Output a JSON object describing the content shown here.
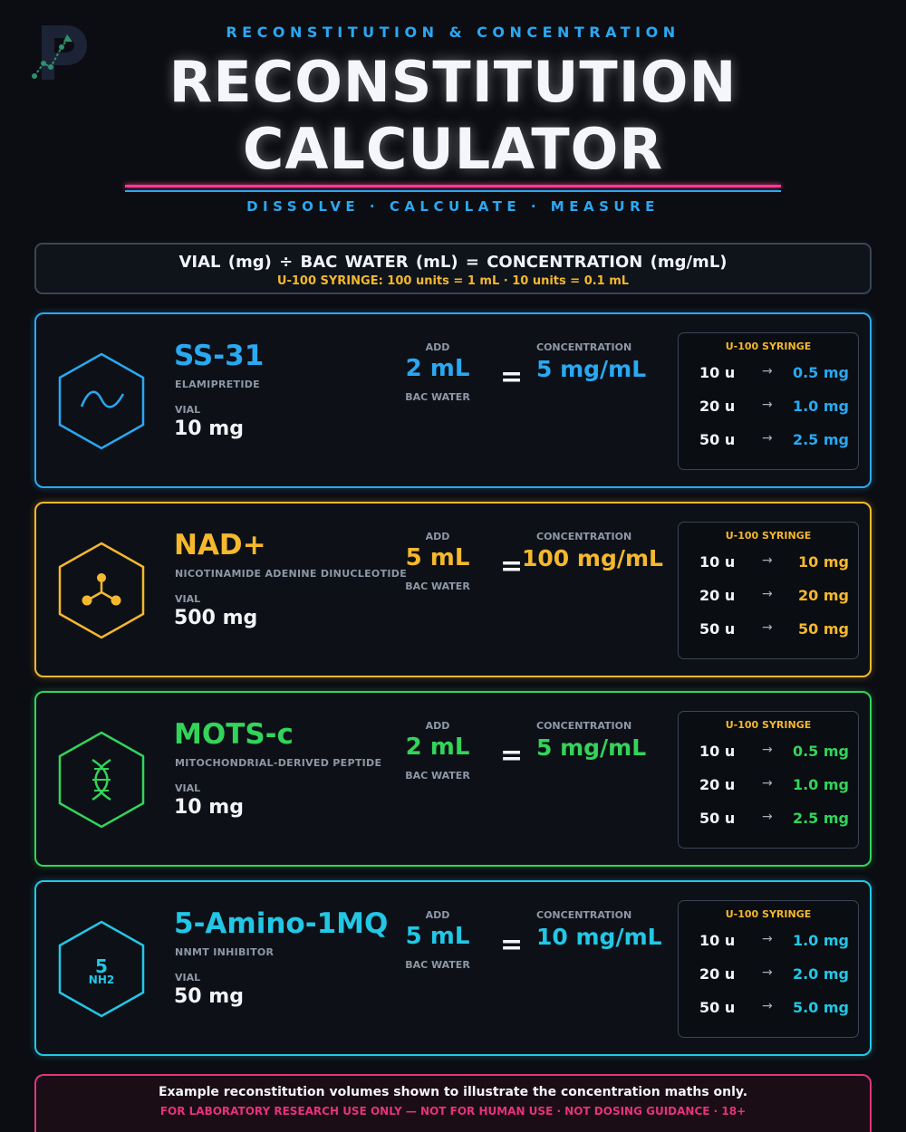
{
  "colors": {
    "blue": "#2aa8f2",
    "yellow": "#f5b82e",
    "green": "#33d45a",
    "cyan": "#22c7e6",
    "pink": "#ff3c8e"
  },
  "header": {
    "kicker": "RECONSTITUTION & CONCENTRATION",
    "title_line1": "RECONSTITUTION",
    "title_line2": "CALCULATOR",
    "subtitle": "DISSOLVE · CALCULATE · MEASURE"
  },
  "formula": {
    "main": "VIAL (mg)  ÷  BAC WATER (mL)  =  CONCENTRATION (mg/mL)",
    "sub": "U-100 SYRINGE:  100 units = 1 mL   ·   10 units = 0.1 mL"
  },
  "labels": {
    "vial": "VIAL",
    "add": "ADD",
    "bac_water": "BAC WATER",
    "concentration": "CONCENTRATION",
    "syringe_title": "U-100 SYRINGE",
    "equals": "=",
    "arrow": "→"
  },
  "cards": [
    {
      "name": "SS-31",
      "fullname": "ELAMIPRETIDE",
      "vial": "10 mg",
      "add": "2 mL",
      "concentration": "5 mg/mL",
      "icon": "wave-icon",
      "color": "#2aa8f2",
      "syringe": [
        {
          "units": "10 u",
          "mg": "0.5 mg"
        },
        {
          "units": "20 u",
          "mg": "1.0 mg"
        },
        {
          "units": "50 u",
          "mg": "2.5 mg"
        }
      ]
    },
    {
      "name": "NAD+",
      "fullname": "NICOTINAMIDE ADENINE DINUCLEOTIDE",
      "vial": "500 mg",
      "add": "5 mL",
      "concentration": "100 mg/mL",
      "icon": "molecule-icon",
      "color": "#f5b82e",
      "syringe": [
        {
          "units": "10 u",
          "mg": "10 mg"
        },
        {
          "units": "20 u",
          "mg": "20 mg"
        },
        {
          "units": "50 u",
          "mg": "50 mg"
        }
      ]
    },
    {
      "name": "MOTS-c",
      "fullname": "MITOCHONDRIAL-DERIVED PEPTIDE",
      "vial": "10 mg",
      "add": "2 mL",
      "concentration": "5 mg/mL",
      "icon": "dna-icon",
      "color": "#33d45a",
      "syringe": [
        {
          "units": "10 u",
          "mg": "0.5 mg"
        },
        {
          "units": "20 u",
          "mg": "1.0 mg"
        },
        {
          "units": "50 u",
          "mg": "2.5 mg"
        }
      ]
    },
    {
      "name": "5-Amino-1MQ",
      "fullname": "NNMT INHIBITOR",
      "vial": "50 mg",
      "add": "5 mL",
      "concentration": "10 mg/mL",
      "icon": "amine-icon",
      "icon_text_top": "5",
      "icon_text_bottom": "NH2",
      "color": "#22c7e6",
      "syringe": [
        {
          "units": "10 u",
          "mg": "1.0 mg"
        },
        {
          "units": "20 u",
          "mg": "2.0 mg"
        },
        {
          "units": "50 u",
          "mg": "5.0 mg"
        }
      ]
    }
  ],
  "footer": {
    "main": "Example reconstitution volumes shown to illustrate the concentration maths only.",
    "sub": "FOR LABORATORY RESEARCH USE ONLY — NOT FOR HUMAN USE · NOT DOSING GUIDANCE · 18+"
  }
}
